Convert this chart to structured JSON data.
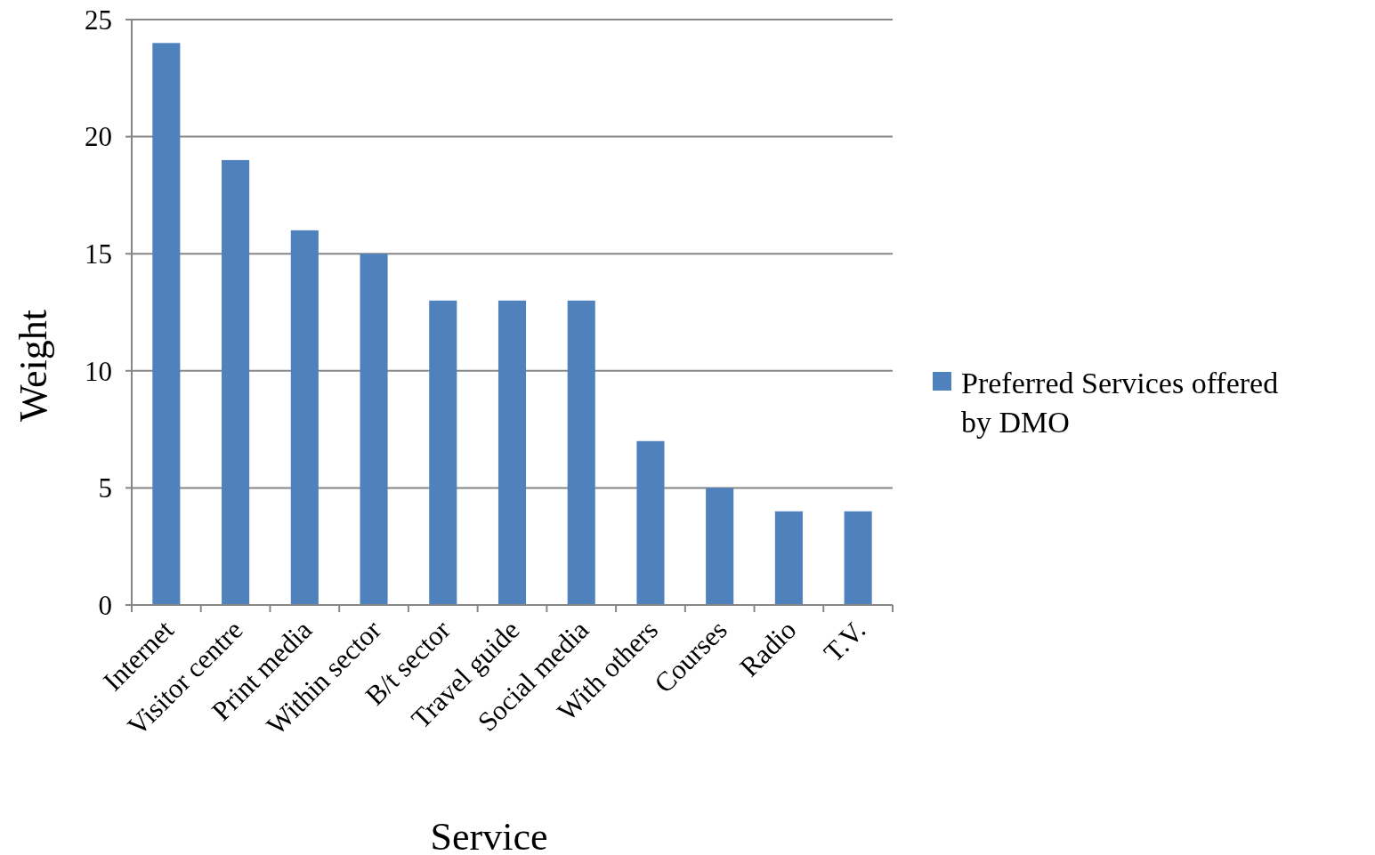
{
  "chart_data": {
    "type": "bar",
    "xlabel": "Service",
    "ylabel": "Weight",
    "categories": [
      "Internet",
      "Visitor centre",
      "Print media",
      "Within sector",
      "B/t sector",
      "Travel guide",
      "Social media",
      "With others",
      "Courses",
      "Radio",
      "T.V."
    ],
    "series": [
      {
        "name": "Preferred Services offered by DMO",
        "color": "#4f81bd",
        "values": [
          24,
          19,
          16,
          15,
          13,
          13,
          13,
          7,
          5,
          4,
          4
        ]
      }
    ],
    "ylim": [
      0,
      25
    ],
    "yticks": [
      0,
      5,
      10,
      15,
      20,
      25
    ],
    "grid": "y",
    "legend": "right"
  }
}
